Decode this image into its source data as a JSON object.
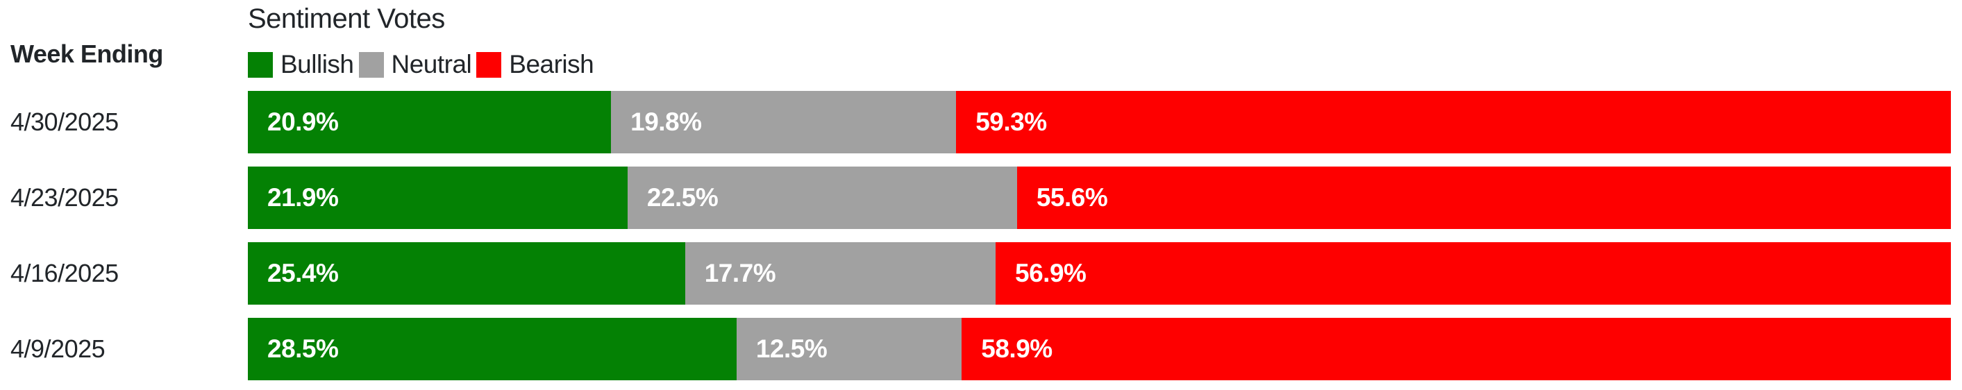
{
  "header": {
    "row_label_title": "Week Ending"
  },
  "colors": {
    "bullish": "#048104",
    "neutral": "#a1a1a1",
    "bearish": "#fe0000",
    "text": "#212529",
    "background": "#ffffff",
    "value_label": "#ffffff"
  },
  "chart_data": {
    "type": "bar",
    "orientation": "horizontal-stacked",
    "title": "Sentiment Votes",
    "categories": [
      "4/30/2025",
      "4/23/2025",
      "4/16/2025",
      "4/9/2025"
    ],
    "series": [
      {
        "name": "Bullish",
        "color": "#048104",
        "values": [
          20.9,
          21.9,
          25.4,
          28.5
        ]
      },
      {
        "name": "Neutral",
        "color": "#a1a1a1",
        "values": [
          19.8,
          22.5,
          17.7,
          12.5
        ]
      },
      {
        "name": "Bearish",
        "color": "#fe0000",
        "values": [
          59.3,
          55.6,
          56.9,
          58.9
        ]
      }
    ],
    "value_suffix": "%",
    "xlim": [
      0,
      100
    ],
    "grid": false,
    "legend_position": "top-left"
  }
}
